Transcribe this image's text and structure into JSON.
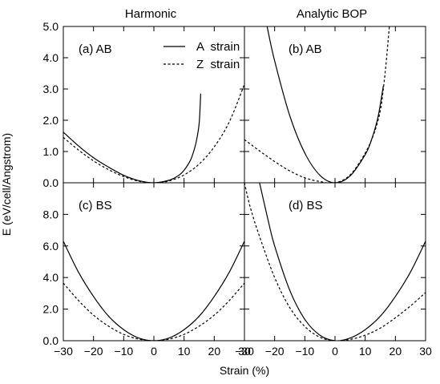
{
  "figure": {
    "column_titles": [
      "Harmonic",
      "Analytic BOP"
    ],
    "xlabel": "Strain (%)",
    "ylabel": "E (eV/cell/Angstrom)",
    "legend": [
      {
        "label": "A  strain",
        "style": "solid"
      },
      {
        "label": "Z  strain",
        "style": "dashed"
      }
    ]
  },
  "chart_data": [
    {
      "type": "line",
      "panel": "(a) AB",
      "column": "Harmonic",
      "xlim": [
        -30,
        30
      ],
      "ylim": [
        0,
        5
      ],
      "x_ticks": [
        -30,
        -20,
        -10,
        0,
        10,
        20,
        30
      ],
      "y_ticks": [
        0,
        1,
        2,
        3,
        4,
        5
      ],
      "y_tick_labels": [
        "0.0",
        "1.0",
        "2.0",
        "3.0",
        "4.0",
        "5.0"
      ],
      "series": [
        {
          "name": "A  strain",
          "style": "solid",
          "x": [
            -30,
            -25,
            -20,
            -15,
            -10,
            -5,
            0,
            5,
            8,
            10,
            12,
            13,
            14,
            15,
            15.5
          ],
          "y": [
            1.62,
            1.18,
            0.8,
            0.5,
            0.24,
            0.07,
            0.0,
            0.08,
            0.22,
            0.4,
            0.7,
            0.95,
            1.3,
            1.9,
            2.85
          ]
        },
        {
          "name": "Z  strain",
          "style": "dashed",
          "x": [
            -30,
            -25,
            -20,
            -15,
            -10,
            -5,
            0,
            5,
            10,
            15,
            20,
            25,
            30
          ],
          "y": [
            1.45,
            1.05,
            0.7,
            0.42,
            0.2,
            0.05,
            0.0,
            0.06,
            0.25,
            0.6,
            1.15,
            1.95,
            3.15
          ]
        }
      ]
    },
    {
      "type": "line",
      "panel": "(b) AB",
      "column": "Analytic BOP",
      "xlim": [
        -30,
        30
      ],
      "ylim": [
        0,
        5
      ],
      "x_ticks": [
        -30,
        -20,
        -10,
        0,
        10,
        20,
        30
      ],
      "y_ticks": [
        0,
        1,
        2,
        3,
        4,
        5
      ],
      "series": [
        {
          "name": "A  strain",
          "style": "solid",
          "x": [
            -22.5,
            -20,
            -15,
            -10,
            -5,
            0,
            5,
            10,
            12,
            14,
            15,
            16
          ],
          "y": [
            5.0,
            3.9,
            2.15,
            0.95,
            0.24,
            0.0,
            0.22,
            0.9,
            1.35,
            2.0,
            2.5,
            3.1
          ]
        },
        {
          "name": "Z  strain",
          "style": "dashed",
          "x": [
            -30,
            -25,
            -20,
            -15,
            -10,
            -5,
            0,
            5,
            10,
            13,
            15,
            16,
            17,
            18
          ],
          "y": [
            1.38,
            1.02,
            0.68,
            0.38,
            0.16,
            0.04,
            0.0,
            0.25,
            0.95,
            1.6,
            2.3,
            3.0,
            3.9,
            5.0
          ]
        }
      ]
    },
    {
      "type": "line",
      "panel": "(c) BS",
      "column": "Harmonic",
      "xlim": [
        -30,
        30
      ],
      "ylim": [
        0,
        10
      ],
      "x_ticks": [
        -30,
        -20,
        -10,
        0,
        10,
        20,
        30
      ],
      "x_tick_labels": [
        "−30",
        "−20",
        "−10",
        "0",
        "10",
        "20",
        "30"
      ],
      "y_ticks": [
        0,
        2,
        4,
        6,
        8
      ],
      "y_tick_labels": [
        "0.0",
        "2.0",
        "4.0",
        "6.0",
        "8.0"
      ],
      "series": [
        {
          "name": "A  strain",
          "style": "solid",
          "x": [
            -30,
            -25,
            -20,
            -15,
            -10,
            -5,
            0,
            5,
            10,
            15,
            20,
            25,
            30
          ],
          "y": [
            6.3,
            4.35,
            2.8,
            1.55,
            0.7,
            0.17,
            0.0,
            0.17,
            0.7,
            1.55,
            2.8,
            4.35,
            6.3
          ]
        },
        {
          "name": "Z  strain",
          "style": "dashed",
          "x": [
            -30,
            -25,
            -20,
            -15,
            -10,
            -5,
            0,
            5,
            10,
            15,
            20,
            25,
            30
          ],
          "y": [
            3.65,
            2.55,
            1.62,
            0.92,
            0.4,
            0.1,
            0.0,
            0.1,
            0.4,
            0.92,
            1.62,
            2.55,
            3.65
          ]
        }
      ]
    },
    {
      "type": "line",
      "panel": "(d) BS",
      "column": "Analytic BOP",
      "xlim": [
        -30,
        30
      ],
      "ylim": [
        0,
        10
      ],
      "x_ticks": [
        -30,
        -20,
        -10,
        0,
        10,
        20,
        30
      ],
      "x_tick_labels": [
        "−30",
        "−20",
        "−10",
        "0",
        "10",
        "20",
        "30"
      ],
      "y_ticks": [
        0,
        2,
        4,
        6,
        8
      ],
      "series": [
        {
          "name": "A  strain",
          "style": "solid",
          "x": [
            -25,
            -22,
            -20,
            -15,
            -10,
            -5,
            0,
            5,
            10,
            15,
            20,
            25,
            30
          ],
          "y": [
            10.0,
            7.5,
            6.0,
            3.2,
            1.35,
            0.35,
            0.0,
            0.17,
            0.7,
            1.55,
            2.8,
            4.35,
            6.3
          ]
        },
        {
          "name": "Z  strain",
          "style": "dashed",
          "x": [
            -30,
            -28,
            -25,
            -20,
            -15,
            -10,
            -5,
            0,
            5,
            10,
            15,
            20,
            25,
            30
          ],
          "y": [
            10.0,
            8.4,
            6.6,
            4.0,
            2.1,
            0.9,
            0.22,
            0.0,
            0.08,
            0.35,
            0.8,
            1.45,
            2.2,
            3.05
          ]
        }
      ]
    }
  ]
}
